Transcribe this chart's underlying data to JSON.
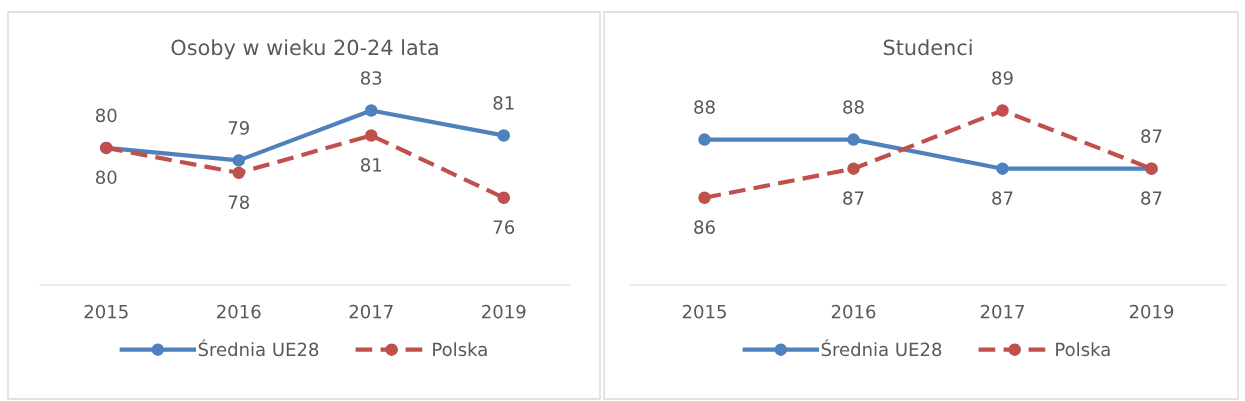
{
  "chart_data": [
    {
      "type": "line",
      "title": "Osoby w wieku 20-24 lata",
      "categories": [
        "2015",
        "2016",
        "2017",
        "2019"
      ],
      "data_labels": true,
      "marker": "circle",
      "legend": "bottom",
      "series": [
        {
          "name": "Średnia UE28",
          "color": "#4f81bd",
          "line_style": "solid",
          "values": [
            80,
            79,
            83,
            81
          ]
        },
        {
          "name": "Polska",
          "color": "#c0504d",
          "line_style": "dashed",
          "values": [
            80,
            78,
            81,
            76
          ]
        }
      ]
    },
    {
      "type": "line",
      "title": "Studenci",
      "categories": [
        "2015",
        "2016",
        "2017",
        "2019"
      ],
      "data_labels": true,
      "marker": "circle",
      "legend": "bottom",
      "series": [
        {
          "name": "Średnia UE28",
          "color": "#4f81bd",
          "line_style": "solid",
          "values": [
            88,
            88,
            87,
            87
          ]
        },
        {
          "name": "Polska",
          "color": "#c0504d",
          "line_style": "dashed",
          "values": [
            86,
            87,
            89,
            87
          ]
        }
      ]
    }
  ]
}
